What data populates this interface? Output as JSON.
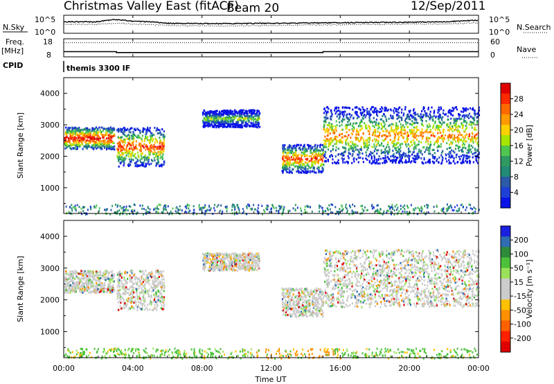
{
  "header": {
    "station": "Christmas Valley East (fitACF)",
    "beam": "Beam 20",
    "date": "12/Sep/2011"
  },
  "noise_panel": {
    "left_label": "N.Sky",
    "left_ticks": [
      "10^5",
      "10^0"
    ],
    "right_ticks": [
      "10^5",
      "10^0"
    ],
    "right_label": "N.Search"
  },
  "freq_panel": {
    "left_label_1": "Freq.",
    "left_label_2": "[MHz]",
    "left_ticks": [
      "18",
      "8"
    ],
    "right_ticks": [
      "60",
      "0"
    ],
    "right_label": "Nave"
  },
  "cpid_panel": {
    "label": "CPID",
    "program": "themis 3300 IF"
  },
  "power_panel": {
    "ylabel": "Slant Range [km]",
    "cbar_label": "Power [dB]",
    "cbar_ticks": [
      "28",
      "24",
      "20",
      "16",
      "12",
      "8",
      "4"
    ],
    "cbar_colors": [
      "#e00000",
      "#ff2a00",
      "#ff6a00",
      "#ff9a00",
      "#ffd000",
      "#a6e600",
      "#4fc64f",
      "#2e9a62",
      "#238a76",
      "#2a5aa8",
      "#1f3fd6",
      "#0a14e6"
    ]
  },
  "velocity_panel": {
    "ylabel": "Slant Range [km]",
    "cbar_label": "Velocity [m s⁻¹]",
    "cbar_ticks": [
      "200",
      "100",
      "50",
      "15",
      "-15",
      "-50",
      "-100",
      "-200"
    ],
    "cbar_colors": [
      "#1a20e0",
      "#2f6db0",
      "#2e8b3a",
      "#4cc23c",
      "#9be25a",
      "#cccccc",
      "#cccccc",
      "#ffc000",
      "#ff9000",
      "#ff6000",
      "#ff2000",
      "#e00000"
    ]
  },
  "x_axis": {
    "label": "Time UT",
    "ticks": [
      "00:00",
      "04:00",
      "08:00",
      "12:00",
      "16:00",
      "20:00",
      "00:00"
    ]
  },
  "chart_data": [
    {
      "type": "line",
      "title": "Christmas Valley East (fitACF)",
      "subtitle": "Beam 20",
      "x": [
        0,
        2,
        3,
        4,
        6,
        8,
        10,
        12,
        14,
        15,
        16,
        18,
        20,
        22,
        24
      ],
      "series": [
        {
          "name": "N.Sky",
          "values": [
            1500,
            1600,
            6000,
            2200,
            600,
            500,
            500,
            600,
            700,
            800,
            900,
            1000,
            1200,
            1500,
            4000
          ]
        },
        {
          "name": "N.Search",
          "values": [
            300,
            300,
            600,
            400,
            150,
            120,
            120,
            150,
            200,
            220,
            250,
            300,
            350,
            400,
            800
          ]
        }
      ],
      "xlabel": "Time UT",
      "ylim": [
        1,
        100000
      ],
      "log_y": true
    },
    {
      "type": "line",
      "x": [
        0,
        3.05,
        3.05,
        15.0,
        15.0,
        24
      ],
      "series": [
        {
          "name": "Freq.",
          "values": [
            10.9,
            10.9,
            10.4,
            10.4,
            10.9,
            10.9
          ]
        },
        {
          "name": "Nave",
          "values": [
            47,
            47,
            47,
            47,
            47,
            47
          ]
        }
      ],
      "ylim": [
        8,
        18
      ]
    },
    {
      "type": "heatmap",
      "ylabel": "Slant Range [km]",
      "colorbar_label": "Power [dB]",
      "colorbar_ticks": [
        28,
        24,
        20,
        16,
        12,
        8,
        4
      ],
      "xlim": [
        0,
        24
      ],
      "ylim": [
        180,
        4500
      ],
      "echo_regions": [
        {
          "t0": 0.0,
          "t1": 2.9,
          "r_low": 2250,
          "r_high": 2950,
          "peak_db": 28
        },
        {
          "t0": 3.05,
          "t1": 5.8,
          "r_low": 1700,
          "r_high": 2950,
          "peak_db": 24
        },
        {
          "t0": 8.0,
          "t1": 11.3,
          "r_low": 2950,
          "r_high": 3500,
          "peak_db": 12
        },
        {
          "t0": 12.6,
          "t1": 15.0,
          "r_low": 1500,
          "r_high": 2400,
          "peak_db": 24
        },
        {
          "t0": 15.0,
          "t1": 24.0,
          "r_low": 1800,
          "r_high": 3600,
          "peak_db": 20
        }
      ]
    },
    {
      "type": "heatmap",
      "ylabel": "Slant Range [km]",
      "colorbar_label": "Velocity [m s⁻¹]",
      "colorbar_ticks": [
        200,
        100,
        50,
        15,
        -15,
        -50,
        -100,
        -200
      ],
      "xlim": [
        0,
        24
      ],
      "ylim": [
        180,
        4500
      ],
      "echo_regions": [
        {
          "t0": 0.0,
          "t1": 2.9,
          "r_low": 2250,
          "r_high": 2950,
          "velocity": 0
        },
        {
          "t0": 3.05,
          "t1": 5.8,
          "r_low": 1700,
          "r_high": 2950,
          "velocity": 20
        },
        {
          "t0": 8.0,
          "t1": 11.3,
          "r_low": 2950,
          "r_high": 3500,
          "velocity": -50
        },
        {
          "t0": 12.6,
          "t1": 15.0,
          "r_low": 1500,
          "r_high": 2400,
          "velocity": 0
        },
        {
          "t0": 15.0,
          "t1": 24.0,
          "r_low": 1800,
          "r_high": 3600,
          "velocity": 0
        }
      ]
    }
  ]
}
